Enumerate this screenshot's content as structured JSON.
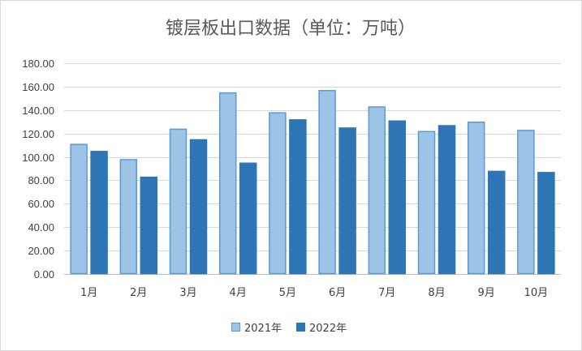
{
  "chart_data": {
    "type": "bar",
    "title": "镀层板出口数据（单位：万吨）",
    "categories": [
      "1月",
      "2月",
      "3月",
      "4月",
      "5月",
      "6月",
      "7月",
      "8月",
      "9月",
      "10月"
    ],
    "series": [
      {
        "name": "2021年",
        "color": "#9dc3e6",
        "stroke": "#5b9bd5",
        "values": [
          111,
          98,
          124,
          155,
          138,
          157,
          143,
          122,
          130,
          123
        ]
      },
      {
        "name": "2022年",
        "color": "#2e75b6",
        "stroke": "#2e75b6",
        "values": [
          105,
          83,
          115,
          95,
          132,
          125,
          131,
          127,
          88,
          87
        ]
      }
    ],
    "yticks": [
      "0.00",
      "20.00",
      "40.00",
      "60.00",
      "80.00",
      "100.00",
      "120.00",
      "140.00",
      "160.00",
      "180.00"
    ],
    "ylim": [
      0,
      180
    ],
    "grid": true,
    "legend_position": "bottom"
  }
}
